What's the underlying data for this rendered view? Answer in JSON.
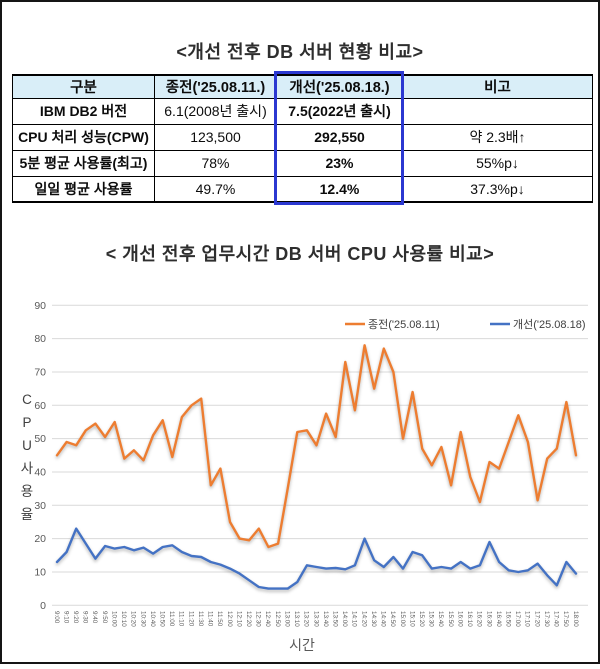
{
  "page": {
    "title_table": "<개선 전후 DB 서버 현황 비교>",
    "title_chart": "< 개선 전후 업무시간 DB 서버 CPU 사용률 비교>"
  },
  "table": {
    "headers": [
      "구분",
      "종전('25.08.11.)",
      "개선('25.08.18.)",
      "비고"
    ],
    "rows": [
      [
        "IBM DB2 버전",
        "6.1(2008년 출시)",
        "7.5(2022년 출시)",
        ""
      ],
      [
        "CPU 처리 성능(CPW)",
        "123,500",
        "292,550",
        "약 2.3배↑"
      ],
      [
        "5분 평균 사용률(최고)",
        "78%",
        "23%",
        "55%p↓"
      ],
      [
        "일일 평균 사용률",
        "49.7%",
        "12.4%",
        "37.3%p↓"
      ]
    ],
    "header_bg": "#d9eef8",
    "highlight_column_index": 2,
    "highlight_border_color": "#2b38d1"
  },
  "chart_data": {
    "type": "line",
    "title": "",
    "xlabel": "시간",
    "ylabel": "CPU 사용율",
    "ylabel_chars": [
      "C",
      "P",
      "U",
      "사",
      "용",
      "율"
    ],
    "ylim": [
      0,
      90
    ],
    "y_ticks": [
      0,
      10,
      20,
      30,
      40,
      50,
      60,
      70,
      80,
      90
    ],
    "grid": true,
    "legend_position": "top-right",
    "axis_text_color": "#595959",
    "grid_color": "#d9d9d9",
    "categories": [
      "9:00",
      "9:10",
      "9:20",
      "9:30",
      "9:40",
      "9:50",
      "10:00",
      "10:10",
      "10:20",
      "10:30",
      "10:40",
      "10:50",
      "11:00",
      "11:10",
      "11:20",
      "11:30",
      "11:40",
      "11:50",
      "12:00",
      "12:10",
      "12:20",
      "12:30",
      "12:40",
      "12:50",
      "13:00",
      "13:10",
      "13:20",
      "13:30",
      "13:40",
      "13:50",
      "14:00",
      "14:10",
      "14:20",
      "14:30",
      "14:40",
      "14:50",
      "15:00",
      "15:10",
      "15:20",
      "15:30",
      "15:40",
      "15:50",
      "16:00",
      "16:10",
      "16:20",
      "16:30",
      "16:40",
      "16:50",
      "17:00",
      "17:10",
      "17:20",
      "17:30",
      "17:40",
      "17:50",
      "18:00"
    ],
    "series": [
      {
        "name": "종전('25.08.11)",
        "color": "#ED7D31",
        "values": [
          45,
          49,
          48,
          52.5,
          54.5,
          50.5,
          55,
          44,
          46.5,
          43.5,
          51,
          55.5,
          44.5,
          56.5,
          60,
          62,
          36,
          41,
          25,
          20,
          19.5,
          23,
          17.5,
          18.5,
          35,
          52,
          52.5,
          48,
          57.5,
          50.5,
          73,
          58.5,
          78,
          65,
          77,
          70,
          50,
          64,
          47,
          42,
          47.5,
          36,
          52,
          38.5,
          31,
          43,
          41,
          49,
          57,
          49,
          31.5,
          44,
          47,
          61,
          45
        ]
      },
      {
        "name": "개선('25.08.18)",
        "color": "#4472C4",
        "values": [
          13,
          16,
          23,
          18.5,
          14,
          17.8,
          17,
          17.5,
          16.5,
          17.3,
          15.5,
          17.5,
          18,
          16,
          14.8,
          14.5,
          13,
          12.2,
          11,
          9.5,
          7.5,
          5.5,
          5,
          5,
          5,
          7,
          12,
          11.5,
          11,
          11.2,
          10.8,
          12,
          20,
          13.5,
          11.5,
          14.5,
          11,
          16,
          15,
          11,
          11.5,
          11,
          13,
          11,
          12,
          19,
          13,
          10.5,
          10,
          10.5,
          12.5,
          9,
          6,
          13,
          9.5
        ]
      }
    ]
  }
}
